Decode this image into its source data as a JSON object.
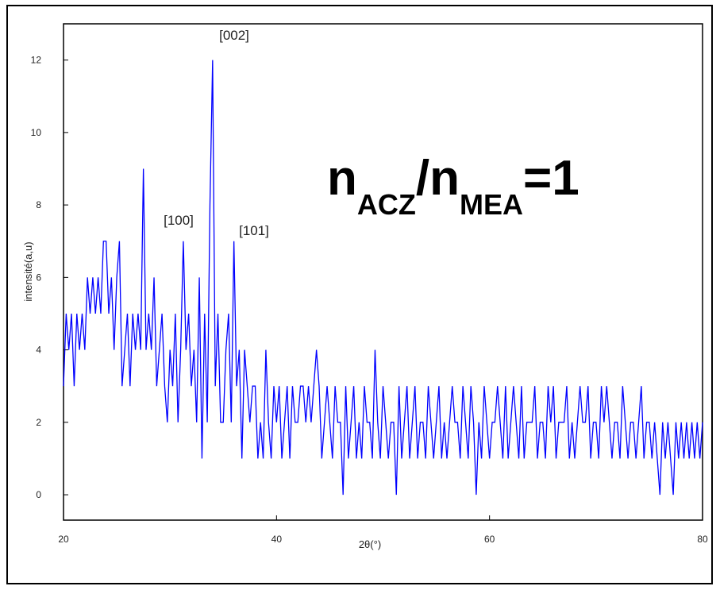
{
  "chart_data": {
    "type": "line",
    "x_label": "2θ(°)",
    "y_label": "intensité(a,u)",
    "annotations": [
      "[002]",
      "[100]",
      "[101]"
    ],
    "label_parts": [
      "n",
      "ACZ",
      "/n",
      "MEA",
      "=1"
    ],
    "xlim": [
      20,
      80
    ],
    "xticks": [
      20,
      40,
      60,
      80
    ],
    "ylim": [
      -0.7,
      13
    ],
    "yticks": [
      0,
      2,
      4,
      6,
      8,
      10,
      12
    ],
    "x": [
      20,
      20.25,
      20.5,
      20.75,
      21,
      21.25,
      21.5,
      21.75,
      22,
      22.25,
      22.5,
      22.75,
      23,
      23.25,
      23.5,
      23.75,
      24,
      24.25,
      24.5,
      24.75,
      25,
      25.25,
      25.5,
      25.75,
      26,
      26.25,
      26.5,
      26.75,
      27,
      27.25,
      27.5,
      27.75,
      28,
      28.25,
      28.5,
      28.75,
      29,
      29.25,
      29.5,
      29.75,
      30,
      30.25,
      30.5,
      30.75,
      31,
      31.25,
      31.5,
      31.75,
      32,
      32.25,
      32.5,
      32.75,
      33,
      33.25,
      33.5,
      33.75,
      34,
      34.25,
      34.5,
      34.75,
      35,
      35.25,
      35.5,
      35.75,
      36,
      36.25,
      36.5,
      36.75,
      37,
      37.25,
      37.5,
      37.75,
      38,
      38.25,
      38.5,
      38.75,
      39,
      39.25,
      39.5,
      39.75,
      40,
      40.25,
      40.5,
      40.75,
      41,
      41.25,
      41.5,
      41.75,
      42,
      42.25,
      42.5,
      42.75,
      43,
      43.25,
      43.5,
      43.75,
      44,
      44.25,
      44.5,
      44.75,
      45,
      45.25,
      45.5,
      45.75,
      46,
      46.25,
      46.5,
      46.75,
      47,
      47.25,
      47.5,
      47.75,
      48,
      48.25,
      48.5,
      48.75,
      49,
      49.25,
      49.5,
      49.75,
      50,
      50.25,
      50.5,
      50.75,
      51,
      51.25,
      51.5,
      51.75,
      52,
      52.25,
      52.5,
      52.75,
      53,
      53.25,
      53.5,
      53.75,
      54,
      54.25,
      54.5,
      54.75,
      55,
      55.25,
      55.5,
      55.75,
      56,
      56.25,
      56.5,
      56.75,
      57,
      57.25,
      57.5,
      57.75,
      58,
      58.25,
      58.5,
      58.75,
      59,
      59.25,
      59.5,
      59.75,
      60,
      60.25,
      60.5,
      60.75,
      61,
      61.25,
      61.5,
      61.75,
      62,
      62.25,
      62.5,
      62.75,
      63,
      63.25,
      63.5,
      63.75,
      64,
      64.25,
      64.5,
      64.75,
      65,
      65.25,
      65.5,
      65.75,
      66,
      66.25,
      66.5,
      66.75,
      67,
      67.25,
      67.5,
      67.75,
      68,
      68.25,
      68.5,
      68.75,
      69,
      69.25,
      69.5,
      69.75,
      70,
      70.25,
      70.5,
      70.75,
      71,
      71.25,
      71.5,
      71.75,
      72,
      72.25,
      72.5,
      72.75,
      73,
      73.25,
      73.5,
      73.75,
      74,
      74.25,
      74.5,
      74.75,
      75,
      75.25,
      75.5,
      75.75,
      76,
      76.25,
      76.5,
      76.75,
      77,
      77.25,
      77.5,
      77.75,
      78,
      78.25,
      78.5,
      78.75,
      79,
      79.25,
      79.5,
      79.75,
      80
    ],
    "series": [
      {
        "color": "#0000ff",
        "values": [
          3,
          5,
          4,
          5,
          3,
          5,
          4,
          5,
          4,
          6,
          5,
          6,
          5,
          6,
          5,
          7,
          7,
          5,
          6,
          4,
          6,
          7,
          3,
          4,
          5,
          3,
          5,
          4,
          5,
          4,
          9,
          4,
          5,
          4,
          6,
          3,
          4,
          5,
          3,
          2,
          4,
          3,
          5,
          2,
          4,
          7,
          4,
          5,
          3,
          4,
          2,
          6,
          1,
          5,
          2,
          8,
          12,
          3,
          5,
          2,
          2,
          4,
          5,
          2,
          7,
          3,
          4,
          1,
          4,
          3,
          2,
          3,
          3,
          1,
          2,
          1,
          4,
          2,
          1,
          3,
          2,
          3,
          1,
          2,
          3,
          1,
          3,
          2,
          2,
          3,
          3,
          2,
          3,
          2,
          3,
          4,
          3,
          1,
          2,
          3,
          2,
          1,
          3,
          2,
          2,
          0,
          3,
          1,
          2,
          3,
          1,
          2,
          1,
          3,
          2,
          2,
          1,
          4,
          2,
          1,
          3,
          2,
          1,
          2,
          2,
          0,
          3,
          1,
          2,
          3,
          1,
          2,
          3,
          1,
          2,
          2,
          1,
          3,
          2,
          1,
          2,
          3,
          1,
          2,
          1,
          2,
          3,
          2,
          2,
          1,
          3,
          2,
          1,
          3,
          2,
          0,
          2,
          1,
          3,
          2,
          1,
          2,
          2,
          3,
          2,
          1,
          3,
          1,
          2,
          3,
          2,
          1,
          3,
          1,
          2,
          2,
          2,
          3,
          1,
          2,
          2,
          1,
          3,
          2,
          3,
          1,
          2,
          2,
          2,
          3,
          1,
          2,
          1,
          2,
          3,
          2,
          2,
          3,
          1,
          2,
          2,
          1,
          3,
          2,
          3,
          2,
          1,
          2,
          2,
          1,
          3,
          2,
          1,
          2,
          2,
          1,
          2,
          3,
          1,
          2,
          2,
          1,
          2,
          1,
          0,
          2,
          1,
          2,
          1,
          0,
          2,
          1,
          2,
          1,
          2,
          1,
          2,
          1,
          2,
          1,
          2
        ]
      }
    ]
  }
}
